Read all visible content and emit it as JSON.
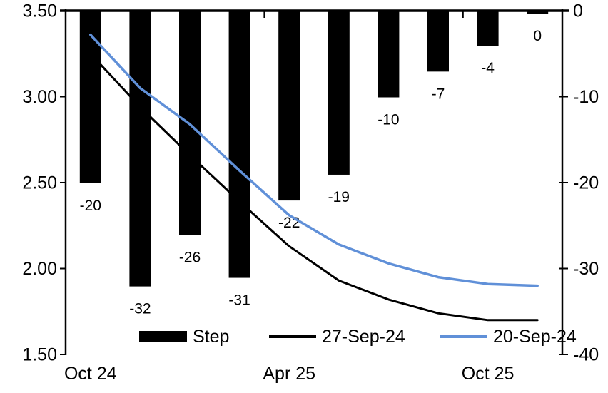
{
  "chart_data": {
    "type": "combo-bar-line",
    "title": "",
    "n_categories": 10,
    "x_tick_labels": [
      {
        "label": "Oct 24",
        "category_index": 0
      },
      {
        "label": "Apr 25",
        "category_index": 4
      },
      {
        "label": "Oct 25",
        "category_index": 8
      }
    ],
    "bar_series": {
      "name": "Step",
      "axis": "right",
      "color": "#000000",
      "values": [
        -20,
        -32,
        -26,
        -31,
        -22,
        -19,
        -10,
        -7,
        -4,
        0
      ],
      "data_labels": [
        "-20",
        "-32",
        "-26",
        "-31",
        "-22",
        "-19",
        "-10",
        "-7",
        "-4",
        "0"
      ]
    },
    "line_series": [
      {
        "name": "27-Sep-24",
        "axis": "left",
        "color": "#000000",
        "values": [
          3.25,
          2.94,
          2.66,
          2.39,
          2.13,
          1.93,
          1.82,
          1.74,
          1.7,
          1.7
        ]
      },
      {
        "name": "20-Sep-24",
        "axis": "left",
        "color": "#6090D8",
        "values": [
          3.36,
          3.05,
          2.84,
          2.57,
          2.31,
          2.14,
          2.03,
          1.95,
          1.91,
          1.9
        ]
      }
    ],
    "left_axis": {
      "min": 1.5,
      "max": 3.5,
      "tick_labels": [
        "3.50",
        "3.00",
        "2.50",
        "2.00",
        "1.50"
      ]
    },
    "right_axis": {
      "min": -40,
      "max": 0,
      "tick_labels": [
        "0",
        "-10",
        "-20",
        "-30",
        "-40"
      ]
    },
    "legend": {
      "position": "bottom",
      "items": [
        {
          "label": "Step",
          "swatch": "bar",
          "color": "#000000"
        },
        {
          "label": "27-Sep-24",
          "swatch": "line",
          "color": "#000000"
        },
        {
          "label": "20-Sep-24",
          "swatch": "line",
          "color": "#6090D8"
        }
      ]
    },
    "grid": false
  }
}
